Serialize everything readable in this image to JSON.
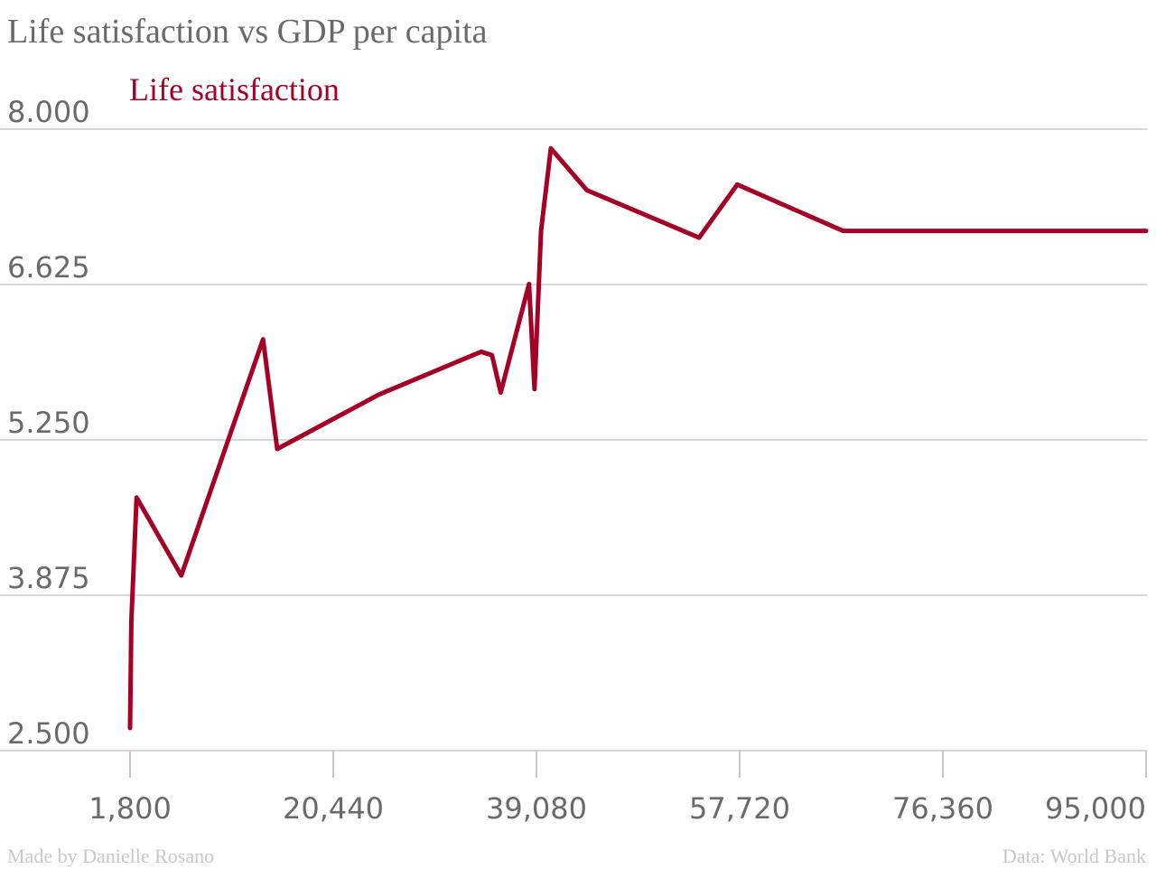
{
  "chart_data": {
    "type": "line",
    "title": "Life satisfaction vs GDP per capita",
    "xlabel": "",
    "ylabel": "",
    "xlim": [
      1800,
      95000
    ],
    "ylim": [
      2.5,
      8.0
    ],
    "x_ticks": [
      1800,
      20440,
      39080,
      57720,
      76360,
      95000
    ],
    "x_tick_labels": [
      "1,800",
      "20,440",
      "39,080",
      "57,720",
      "76,360",
      "95,000"
    ],
    "y_ticks": [
      2.5,
      3.875,
      5.25,
      6.625,
      8.0
    ],
    "y_tick_labels": [
      "2.500",
      "3.875",
      "5.250",
      "6.625",
      "8.000"
    ],
    "grid": true,
    "legend_position": "top-left",
    "series": [
      {
        "name": "Life satisfaction",
        "color": "#a50026",
        "x": [
          1800,
          1920,
          2400,
          6500,
          14000,
          15300,
          24600,
          34000,
          35000,
          35800,
          38400,
          38900,
          39500,
          40400,
          43700,
          54000,
          57500,
          67200,
          95000
        ],
        "y": [
          2.7,
          3.65,
          4.74,
          4.05,
          6.14,
          5.17,
          5.65,
          6.03,
          6.0,
          5.67,
          6.63,
          5.7,
          7.1,
          7.83,
          7.46,
          7.04,
          7.51,
          7.1,
          7.1
        ]
      }
    ]
  },
  "footer": {
    "credit": "Made by Danielle Rosano",
    "source": "Data: World Bank"
  }
}
